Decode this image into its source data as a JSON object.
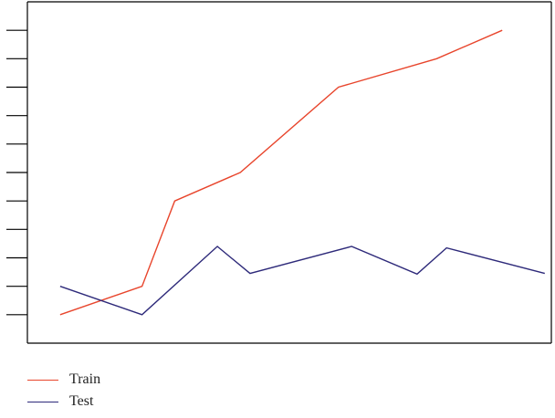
{
  "chart_data": {
    "type": "line",
    "title": "",
    "xlabel": "",
    "ylabel": "",
    "x": [
      1,
      2,
      3,
      4,
      5,
      6,
      7,
      8,
      9,
      10,
      11
    ],
    "xlim": [
      0,
      16
    ],
    "ylim": [
      0,
      12
    ],
    "yticks": [
      1,
      2,
      3,
      4,
      5,
      6,
      7,
      8,
      9,
      10,
      11
    ],
    "grid": false,
    "legend": "bottom-left",
    "series": [
      {
        "name": "Train",
        "color": "#e8452c",
        "points": [
          [
            1,
            1
          ],
          [
            3.5,
            2
          ],
          [
            4.5,
            5
          ],
          [
            6.5,
            6
          ],
          [
            9.5,
            9
          ],
          [
            12.5,
            10
          ],
          [
            14.5,
            11
          ]
        ]
      },
      {
        "name": "Test",
        "color": "#2e2a7a",
        "points": [
          [
            1,
            2
          ],
          [
            3.5,
            1
          ],
          [
            5.8,
            3.4
          ],
          [
            6.8,
            2.45
          ],
          [
            9.9,
            3.4
          ],
          [
            11.9,
            2.43
          ],
          [
            12.8,
            3.35
          ],
          [
            15.8,
            2.45
          ]
        ]
      }
    ]
  }
}
